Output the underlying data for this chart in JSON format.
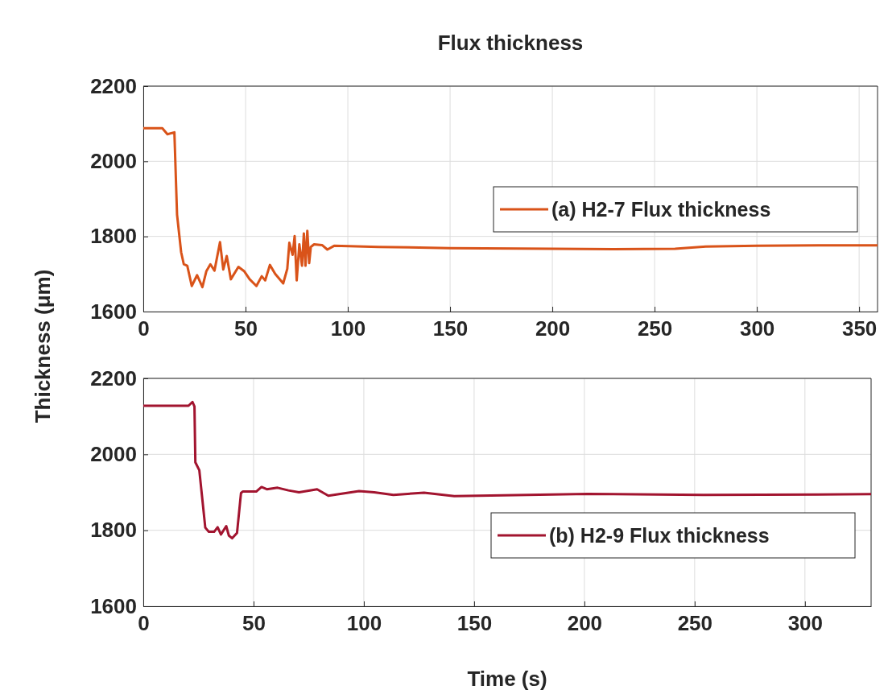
{
  "chart_data": [
    {
      "type": "line",
      "title": "Flux thickness",
      "ylabel": "Thickness (μm)",
      "xlim": [
        0,
        359
      ],
      "xticks": [
        0,
        50,
        100,
        150,
        200,
        250,
        300,
        350
      ],
      "ylim": [
        1600,
        2200
      ],
      "yticks": [
        1600,
        1800,
        2000,
        2200
      ],
      "grid": true,
      "legend": "right",
      "line_style": "solid",
      "series": [
        {
          "name": "(a) H2-7 Flux thickness",
          "color": "#d95319",
          "x": [
            0,
            9.3,
            11.8,
            15.2,
            16.5,
            18.5,
            19.8,
            21.5,
            23.7,
            26.3,
            28.9,
            30.8,
            32.8,
            34.8,
            37.5,
            39.1,
            40.8,
            42.8,
            46.5,
            49.4,
            52,
            55.3,
            57.9,
            59.6,
            61.9,
            64.5,
            68.4,
            70.4,
            71.4,
            73,
            74,
            75,
            76.3,
            77.6,
            78.5,
            79.3,
            80.2,
            81.1,
            81.9,
            83.5,
            87.4,
            90,
            93.3,
            115,
            150,
            200,
            230,
            260,
            275,
            300,
            330,
            359
          ],
          "values": [
            2088,
            2088,
            2072,
            2077,
            1858,
            1758,
            1726,
            1722,
            1668,
            1697,
            1665,
            1707,
            1726,
            1709,
            1785,
            1712,
            1748,
            1686,
            1719,
            1707,
            1686,
            1668,
            1694,
            1683,
            1724,
            1700,
            1675,
            1714,
            1783,
            1751,
            1801,
            1683,
            1779,
            1722,
            1808,
            1722,
            1815,
            1729,
            1772,
            1779,
            1777,
            1765,
            1775,
            1772,
            1769,
            1767,
            1766,
            1767,
            1773,
            1775,
            1776,
            1776
          ]
        }
      ]
    },
    {
      "type": "line",
      "xlabel": "Time (s)",
      "xlim": [
        0,
        330
      ],
      "xticks": [
        0,
        50,
        100,
        150,
        200,
        250,
        300
      ],
      "ylim": [
        1600,
        2200
      ],
      "yticks": [
        1600,
        1800,
        2000,
        2200
      ],
      "grid": true,
      "legend": "bottom right",
      "line_style": "solid",
      "series": [
        {
          "name": "(b) H2-9 Flux thickness",
          "color": "#a2142f",
          "x": [
            0,
            20.5,
            22.3,
            23.2,
            23.6,
            25.4,
            26.6,
            28.1,
            29.7,
            32.1,
            33.7,
            35.2,
            37.6,
            38.8,
            40.3,
            42.5,
            44.3,
            45.1,
            51.2,
            53.6,
            56,
            60.9,
            65.8,
            70.6,
            78.8,
            83.9,
            97.8,
            104.7,
            113.4,
            127.3,
            141,
            201.7,
            253.9,
            330
          ],
          "values": [
            2128,
            2128,
            2138,
            2126,
            1979,
            1958,
            1891,
            1807,
            1796,
            1796,
            1808,
            1789,
            1811,
            1786,
            1779,
            1793,
            1898,
            1902,
            1902,
            1914,
            1908,
            1912,
            1905,
            1900,
            1908,
            1891,
            1903,
            1900,
            1893,
            1899,
            1890,
            1896,
            1893,
            1895
          ]
        }
      ]
    }
  ]
}
